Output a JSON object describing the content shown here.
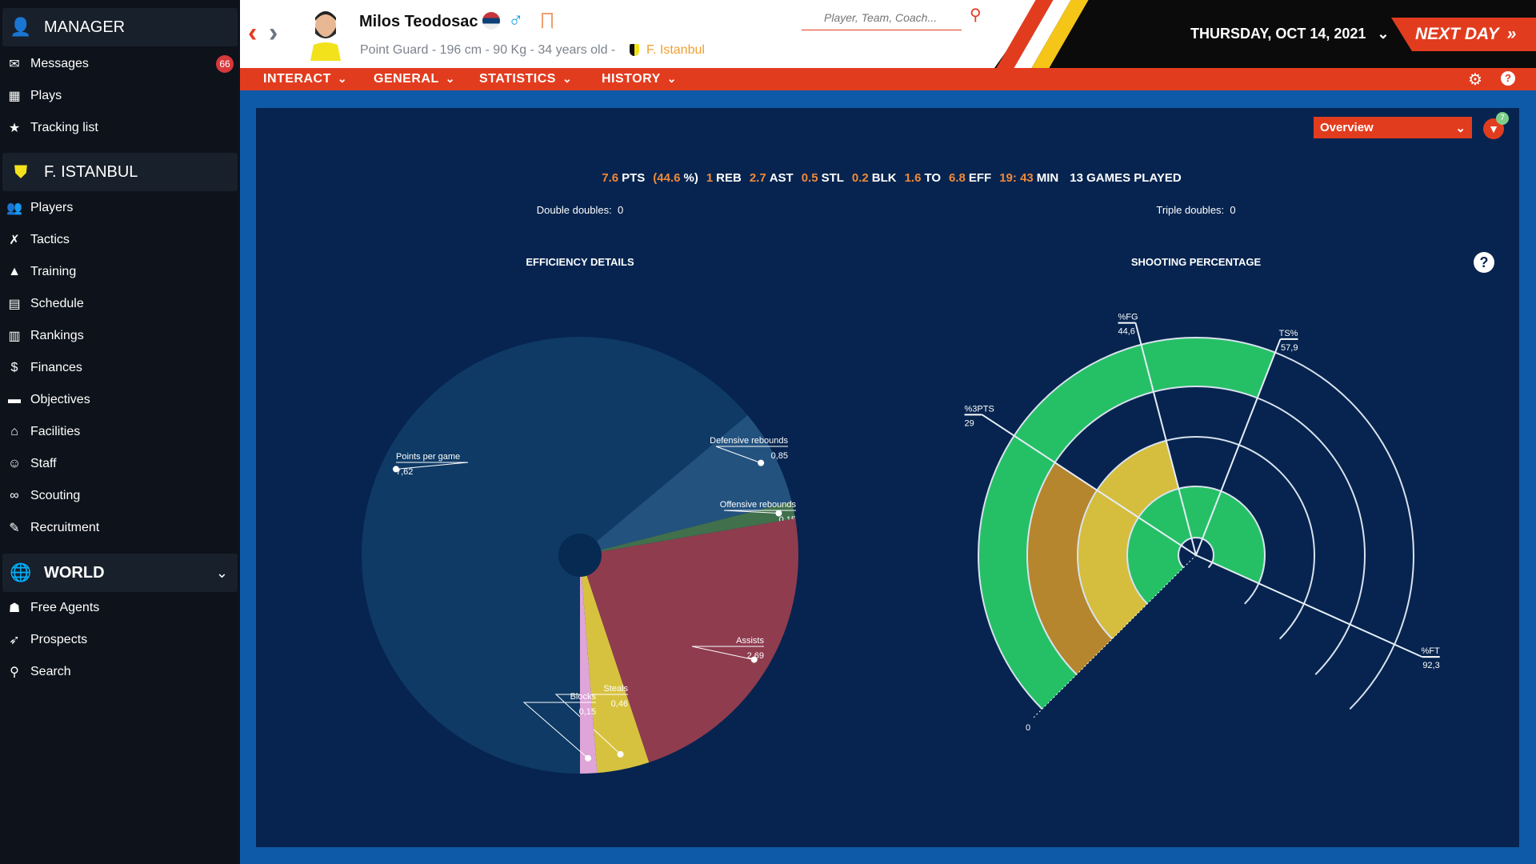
{
  "sidebar": {
    "manager": {
      "title": "MANAGER",
      "items": [
        {
          "label": "Messages",
          "icon": "inbox-icon",
          "glyph": "✉",
          "badge": "66"
        },
        {
          "label": "Plays",
          "icon": "playbook-icon",
          "glyph": "▦"
        },
        {
          "label": "Tracking list",
          "icon": "star-icon",
          "glyph": "★"
        }
      ]
    },
    "team": {
      "title": "F. ISTANBUL",
      "items": [
        {
          "label": "Players",
          "icon": "players-icon",
          "glyph": "👥"
        },
        {
          "label": "Tactics",
          "icon": "tactics-icon",
          "glyph": "✗"
        },
        {
          "label": "Training",
          "icon": "cone-icon",
          "glyph": "▲"
        },
        {
          "label": "Schedule",
          "icon": "calendar-icon",
          "glyph": "▤"
        },
        {
          "label": "Rankings",
          "icon": "podium-icon",
          "glyph": "▥"
        },
        {
          "label": "Finances",
          "icon": "money-bag-icon",
          "glyph": "$"
        },
        {
          "label": "Objectives",
          "icon": "briefcase-icon",
          "glyph": "▬"
        },
        {
          "label": "Facilities",
          "icon": "arena-icon",
          "glyph": "⌂"
        },
        {
          "label": "Staff",
          "icon": "staff-icon",
          "glyph": "☺"
        },
        {
          "label": "Scouting",
          "icon": "binoculars-icon",
          "glyph": "∞"
        },
        {
          "label": "Recruitment",
          "icon": "contract-icon",
          "glyph": "✎"
        }
      ]
    },
    "world": {
      "title": "WORLD",
      "items": [
        {
          "label": "Free Agents",
          "icon": "free-agent-icon",
          "glyph": "☗"
        },
        {
          "label": "Prospects",
          "icon": "rocket-icon",
          "glyph": "➶"
        },
        {
          "label": "Search",
          "icon": "search-icon",
          "glyph": "⚲"
        }
      ]
    }
  },
  "header": {
    "player_name": "Milos Teodosac",
    "player_info": "Point Guard - 196 cm - 90 Kg - 34 years old -",
    "team": "F. Istanbul",
    "search_placeholder": "Player, Team, Coach...",
    "date": "THURSDAY, OCT 14, 2021",
    "next_day": "NEXT DAY",
    "colors": {
      "accent": "#e23c1f",
      "team": "#f0a030",
      "male": "#1aa3e0"
    }
  },
  "nav": [
    "INTERACT",
    "GENERAL",
    "STATISTICS",
    "HISTORY"
  ],
  "main": {
    "view_select": "Overview",
    "filter_count": "7",
    "stats": [
      {
        "v": "7.6",
        "l": "PTS"
      },
      {
        "v": "(44.6",
        "l": "%)"
      },
      {
        "v": "1",
        "l": "REB"
      },
      {
        "v": "2.7",
        "l": "AST"
      },
      {
        "v": "0.5",
        "l": "STL"
      },
      {
        "v": "0.2",
        "l": "BLK"
      },
      {
        "v": "1.6",
        "l": "TO"
      },
      {
        "v": "6.8",
        "l": "EFF"
      },
      {
        "v": "19: 43",
        "l": "MIN"
      },
      {
        "v": "",
        "l": "13 GAMES PLAYED"
      }
    ],
    "double_doubles": "Double doubles:  0",
    "triple_doubles": "Triple doubles:  0"
  },
  "chart_data": [
    {
      "type": "pie",
      "title": "EFFICIENCY DETAILS",
      "slices": [
        {
          "label": "Points per game",
          "value": 7.62,
          "display": "7,62",
          "color": "#0e3a65"
        },
        {
          "label": "Defensive rebounds",
          "value": 0.85,
          "display": "0,85",
          "color": "#23527f"
        },
        {
          "label": "Offensive rebounds",
          "value": 0.15,
          "display": "0,15",
          "color": "#41704c"
        },
        {
          "label": "Assists",
          "value": 2.69,
          "display": "2,69",
          "color": "#8f3c4f"
        },
        {
          "label": "Steals",
          "value": 0.46,
          "display": "0,46",
          "color": "#d7c23f"
        },
        {
          "label": "Blocks",
          "value": 0.15,
          "display": "0,15",
          "color": "#dfa5d8"
        }
      ]
    },
    {
      "type": "radial-bar",
      "title": "SHOOTING PERCENTAGE",
      "range": [
        0,
        100
      ],
      "zero_label": "0",
      "series": [
        {
          "label": "%FT",
          "value": 92.3,
          "display": "92,3",
          "color": "#25c066"
        },
        {
          "label": "%FG",
          "value": 44.6,
          "display": "44,6",
          "color": "#d5bd3e"
        },
        {
          "label": "%3PTS",
          "value": 29,
          "display": "29",
          "color": "#b5862e"
        },
        {
          "label": "TS%",
          "value": 57.9,
          "display": "57,9",
          "color": "#25c066"
        }
      ]
    }
  ]
}
